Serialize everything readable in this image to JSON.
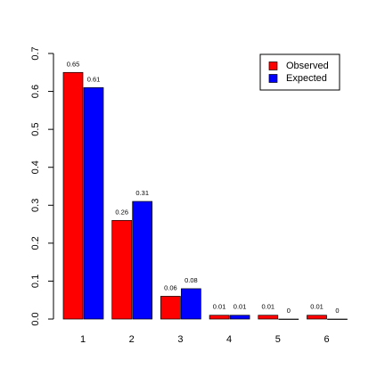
{
  "chart_data": {
    "type": "bar",
    "categories": [
      "1",
      "2",
      "3",
      "4",
      "5",
      "6"
    ],
    "series": [
      {
        "name": "Observed",
        "color": "#ff0000",
        "values": [
          0.65,
          0.26,
          0.06,
          0.01,
          0.01,
          0.01
        ]
      },
      {
        "name": "Expected",
        "color": "#0000ff",
        "values": [
          0.61,
          0.31,
          0.08,
          0.01,
          0,
          0
        ]
      }
    ],
    "ylim": [
      0,
      0.7
    ],
    "yticks": [
      {
        "value": 0,
        "label": "0.0"
      },
      0.1,
      0.2,
      0.3,
      0.4,
      0.5,
      0.6,
      0.7
    ],
    "legend": "top-right"
  }
}
